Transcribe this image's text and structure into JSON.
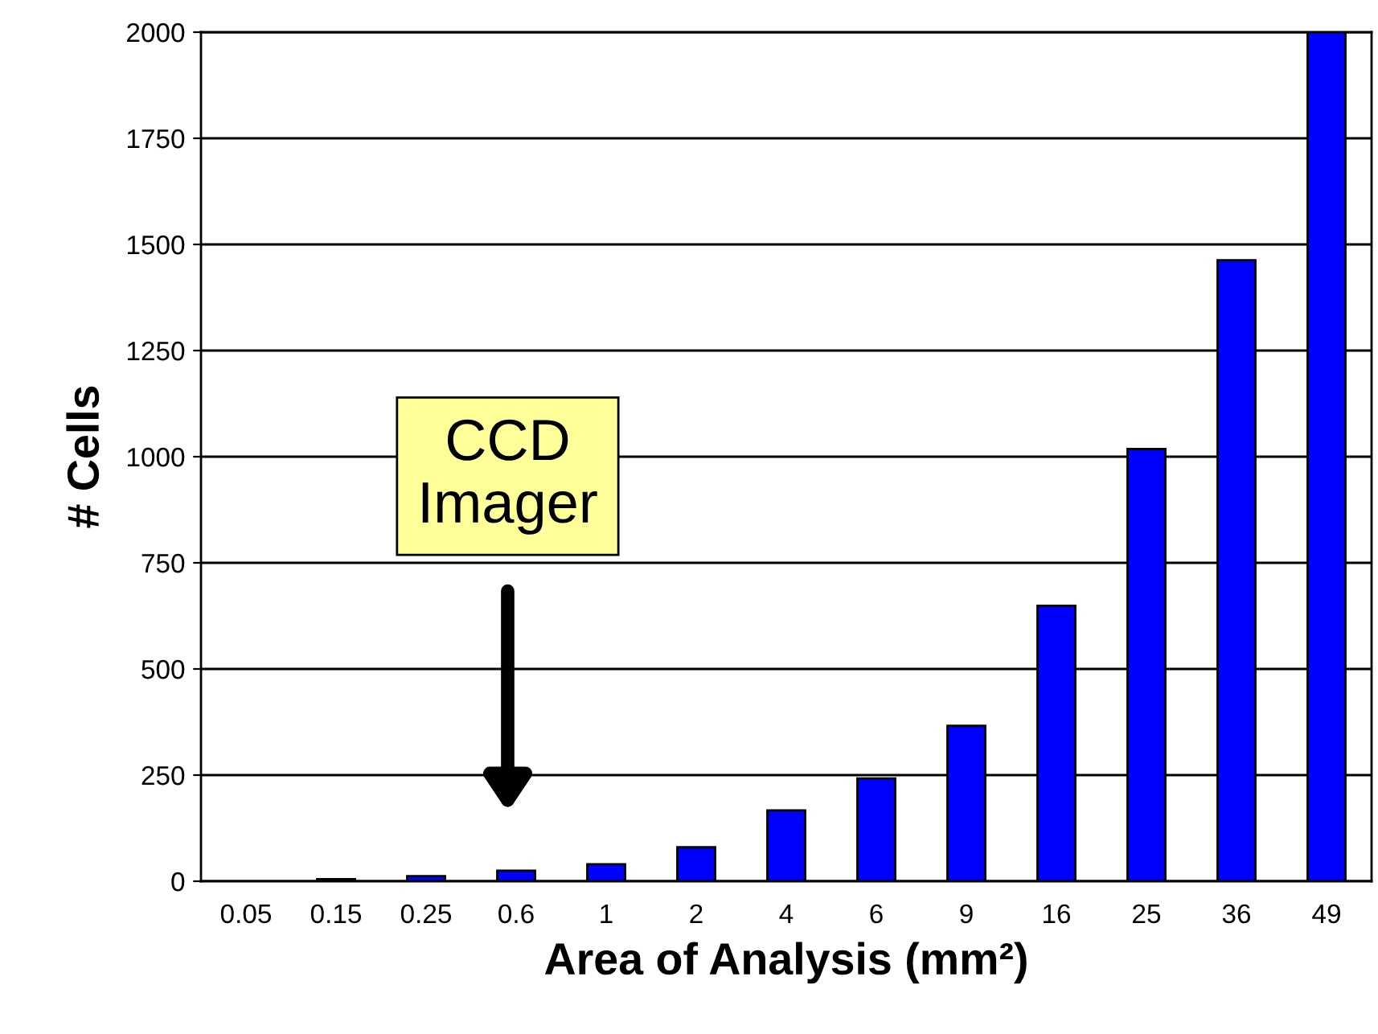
{
  "chart_data": {
    "type": "bar",
    "xlabel": "Area of Analysis (mm²)",
    "ylabel": "# Cells",
    "categories": [
      "0.05",
      "0.15",
      "0.25",
      "0.6",
      "1",
      "2",
      "4",
      "6",
      "9",
      "16",
      "25",
      "36",
      "49"
    ],
    "values": [
      null,
      5,
      12,
      25,
      40,
      80,
      167,
      242,
      366,
      649,
      1018,
      1463,
      2000
    ],
    "color": "#0000ff",
    "ylim": [
      0,
      2000
    ],
    "yticks": [
      0,
      250,
      500,
      750,
      1000,
      1250,
      1500,
      1750,
      2000
    ],
    "grid": "y",
    "annotations": [
      "CCD\nImager"
    ]
  }
}
